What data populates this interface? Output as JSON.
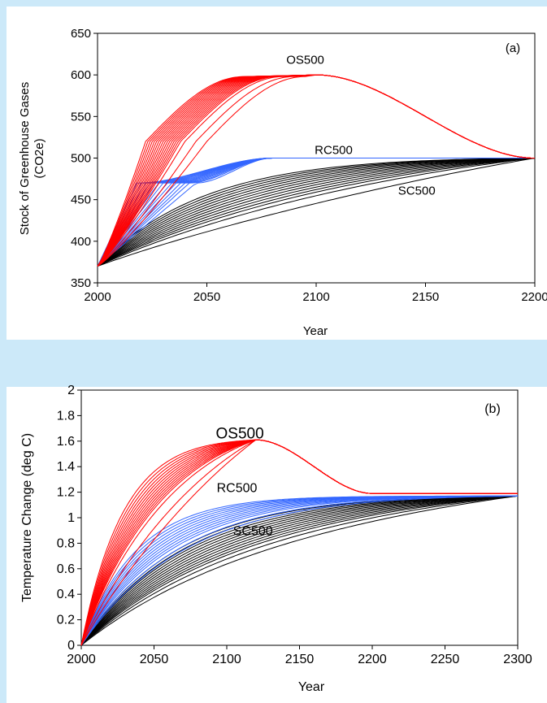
{
  "chart_data": [
    {
      "panel_label": "(a)",
      "type": "line",
      "title": "",
      "xlabel": "Year",
      "ylabel_lines": [
        "Stock of Greenhouse Gases",
        "(CO2e)"
      ],
      "xlim": [
        2000,
        2200
      ],
      "ylim": [
        350,
        650
      ],
      "xticks": [
        2000,
        2050,
        2100,
        2150,
        2200
      ],
      "yticks": [
        350,
        400,
        450,
        500,
        550,
        600,
        650
      ],
      "grid": false,
      "legend": "none (inline labels)",
      "series_labels": [
        {
          "text": "OS500",
          "x": 2095,
          "y": 618
        },
        {
          "text": "RC500",
          "x": 2108,
          "y": 510
        },
        {
          "text": "SC500",
          "x": 2146,
          "y": 461
        }
      ],
      "groups": [
        {
          "label": "OS500",
          "color": "#ff0000",
          "start": 370,
          "peak": 600,
          "peak_year": 2100,
          "end_year": 2200,
          "end": 500,
          "rise_years": [
            2022,
            2023,
            2024,
            2025,
            2026,
            2027,
            2028,
            2029,
            2030,
            2031,
            2032,
            2033,
            2034,
            2035,
            2036,
            2037,
            2038,
            2040,
            2045,
            2050
          ]
        },
        {
          "label": "RC500",
          "color": "#3366ff",
          "start": 370,
          "target": 500,
          "plateau_year": 2080,
          "rise_years": [
            2018,
            2020,
            2022,
            2024,
            2026,
            2028,
            2030,
            2032,
            2034,
            2036,
            2038,
            2040,
            2042,
            2045
          ]
        },
        {
          "label": "SC500",
          "color": "#000000",
          "start": 370,
          "target": 500,
          "end_year": 2200,
          "values_at_2050": [
            455,
            452,
            449,
            446,
            443,
            440,
            437,
            434,
            431,
            428,
            425,
            422,
            418,
            410
          ]
        }
      ]
    },
    {
      "panel_label": "(b)",
      "type": "line",
      "title": "",
      "xlabel": "Year",
      "ylabel": "Temperature Change (deg C)",
      "xlim": [
        2000,
        2300
      ],
      "ylim": [
        0,
        2
      ],
      "xticks": [
        2000,
        2050,
        2100,
        2150,
        2200,
        2250,
        2300
      ],
      "yticks": [
        "0",
        "0.2",
        "0.4",
        "0.6",
        "0.8",
        "1",
        "1.2",
        "1.4",
        "1.6",
        "1.8",
        "2"
      ],
      "grid": false,
      "legend": "none (inline labels)",
      "series_labels": [
        {
          "text": "OS500",
          "x": 2109,
          "y": 1.66
        },
        {
          "text": "RC500",
          "x": 2107,
          "y": 1.24
        },
        {
          "text": "SC500",
          "x": 2118,
          "y": 0.9
        }
      ],
      "groups": [
        {
          "label": "OS500",
          "color": "#ff0000",
          "start": 0,
          "peak": 1.61,
          "peak_year": 2120,
          "settle_year": 2200,
          "end": 1.19,
          "values_at_2075": [
            1.5,
            1.48,
            1.46,
            1.44,
            1.42,
            1.4,
            1.38,
            1.36,
            1.34,
            1.32,
            1.3,
            1.28,
            1.26,
            1.22,
            1.1,
            1.0
          ]
        },
        {
          "label": "RC500",
          "color": "#3366ff",
          "start": 0,
          "end": 1.17,
          "values_at_2075": [
            1.01,
            0.99,
            0.97,
            0.95,
            0.93,
            0.91,
            0.89,
            0.87,
            0.85,
            0.83,
            0.8,
            0.77
          ]
        },
        {
          "label": "SC500",
          "color": "#000000",
          "start": 0,
          "end": 1.17,
          "values_at_2100": [
            0.92,
            0.9,
            0.88,
            0.86,
            0.84,
            0.82,
            0.8,
            0.78,
            0.76,
            0.74,
            0.72,
            0.7,
            0.67,
            0.63
          ]
        }
      ]
    }
  ]
}
